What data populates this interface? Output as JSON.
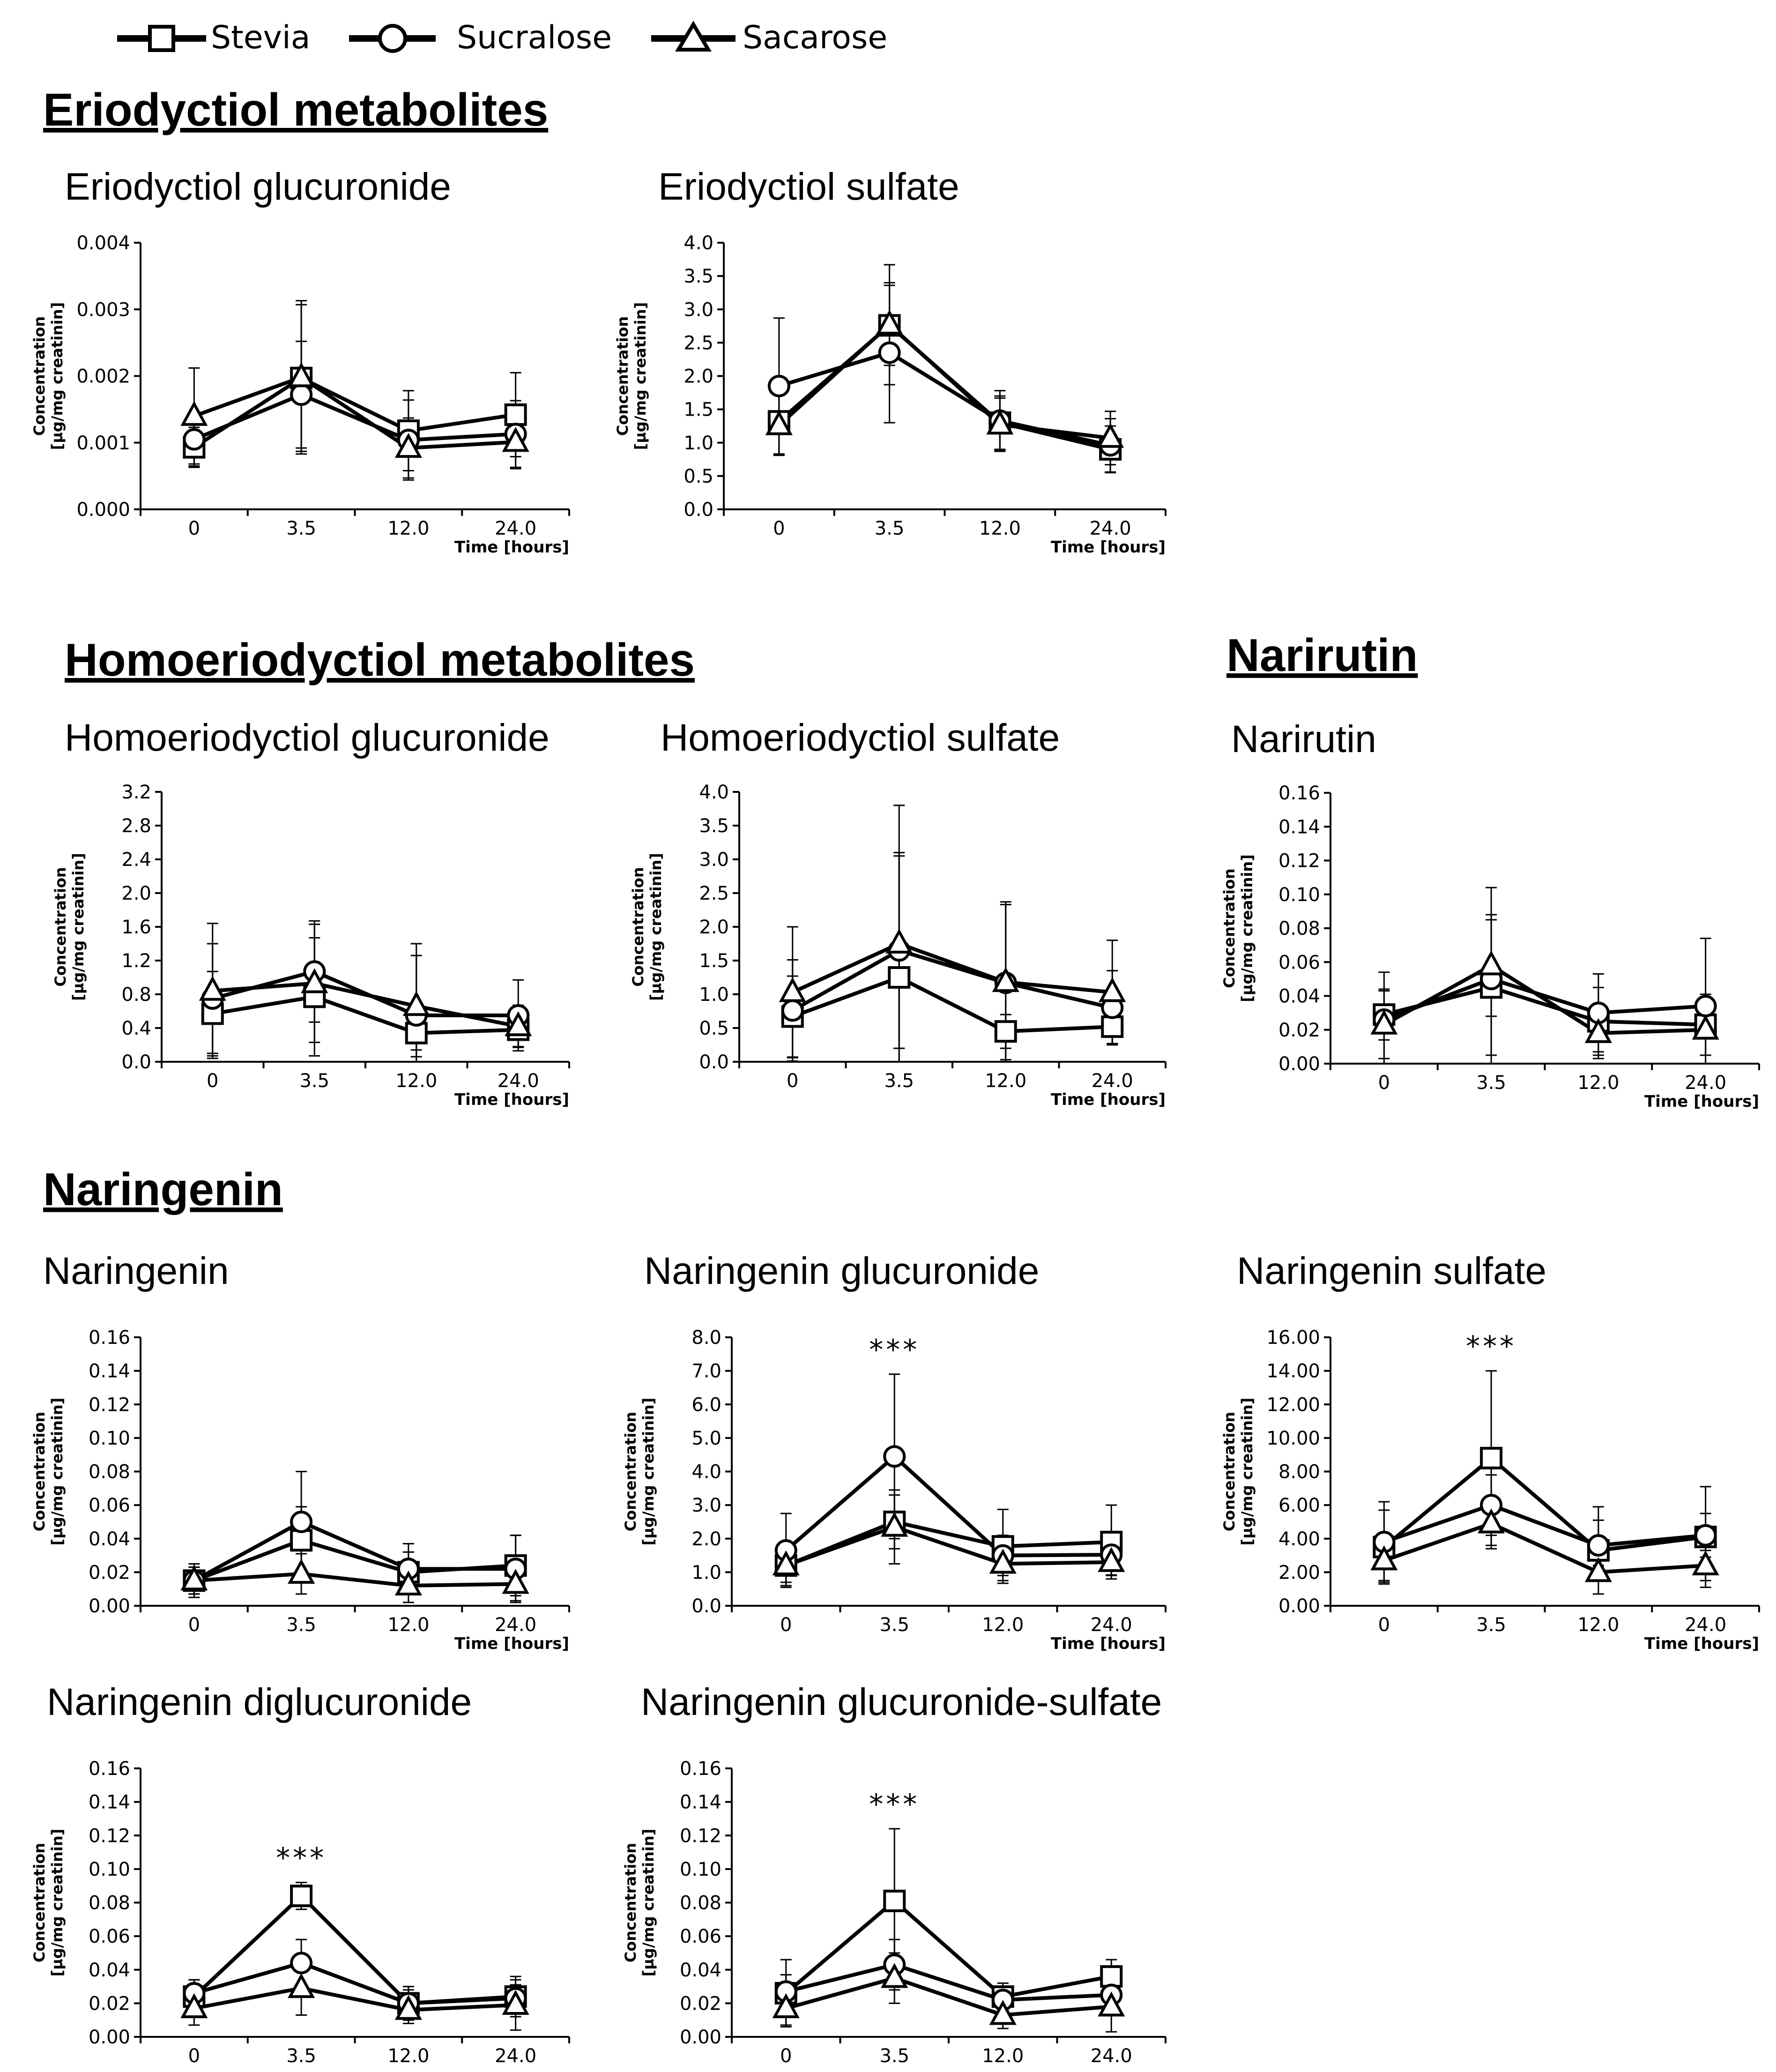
{
  "legend": [
    {
      "name": "Stevia",
      "marker": "square"
    },
    {
      "name": "Sucralose",
      "marker": "circle"
    },
    {
      "name": "Sacarose",
      "marker": "triangle"
    }
  ],
  "sections": [
    {
      "title": "Eriodyctiol metabolites"
    },
    {
      "title": "Homoeriodyctiol metabolites"
    },
    {
      "title": "Narirutin"
    },
    {
      "title": "Naringenin"
    }
  ],
  "axis": {
    "ylabel_line1": "Concentration",
    "ylabel_line2": "[µg/mg creatinin]",
    "xlabel": "Time [hours]"
  },
  "chart_data": [
    {
      "type": "line",
      "title": "Eriodyctiol glucuronide",
      "categories": [
        "0",
        "3.5",
        "12.0",
        "24.0"
      ],
      "ylim": [
        0,
        0.004
      ],
      "yticks": [
        "0.000",
        "0.001",
        "0.002",
        "0.003",
        "0.004"
      ],
      "show_xlabel": true,
      "significance": [],
      "series": [
        {
          "name": "Stevia",
          "values": [
            0.00093,
            0.00197,
            0.00118,
            0.00142
          ],
          "errors": [
            0.0003,
            0.0011,
            0.0006,
            0.00063
          ]
        },
        {
          "name": "Sucralose",
          "values": [
            0.00105,
            0.00172,
            0.00104,
            0.00113
          ],
          "errors": [
            0.0004,
            0.0008,
            0.0006,
            0.0005
          ]
        },
        {
          "name": "Sacarose",
          "values": [
            0.0014,
            0.00198,
            0.00092,
            0.00101
          ],
          "errors": [
            0.00072,
            0.00115,
            0.00045,
            0.0004
          ]
        }
      ]
    },
    {
      "type": "line",
      "title": "Eriodyctiol sulfate",
      "categories": [
        "0",
        "3.5",
        "12.0",
        "24.0"
      ],
      "ylim": [
        0,
        4.0
      ],
      "yticks": [
        "0.0",
        "0.5",
        "1.0",
        "1.5",
        "2.0",
        "2.5",
        "3.0",
        "3.5",
        "4.0"
      ],
      "show_xlabel": true,
      "significance": [],
      "series": [
        {
          "name": "Stevia",
          "values": [
            1.32,
            2.76,
            1.3,
            0.9
          ],
          "errors": [
            0.5,
            0.6,
            0.4,
            0.35
          ]
        },
        {
          "name": "Sucralose",
          "values": [
            1.85,
            2.35,
            1.33,
            0.96
          ],
          "errors": [
            1.02,
            1.05,
            0.45,
            0.4
          ]
        },
        {
          "name": "Sacarose",
          "values": [
            1.26,
            2.77,
            1.27,
            1.07
          ],
          "errors": [
            0.45,
            0.9,
            0.4,
            0.4
          ]
        }
      ]
    },
    {
      "type": "line",
      "title": "Homoeriodyctiol glucuronide",
      "categories": [
        "0",
        "3.5",
        "12.0",
        "24.0"
      ],
      "ylim": [
        0,
        3.2
      ],
      "yticks": [
        "0.0",
        "0.4",
        "0.8",
        "1.2",
        "1.6",
        "2.0",
        "2.4",
        "2.8",
        "3.2"
      ],
      "show_xlabel": true,
      "significance": [],
      "series": [
        {
          "name": "Stevia",
          "values": [
            0.57,
            0.77,
            0.34,
            0.38
          ],
          "errors": [
            0.5,
            0.7,
            0.2,
            0.2
          ]
        },
        {
          "name": "Sucralose",
          "values": [
            0.75,
            1.07,
            0.55,
            0.55
          ],
          "errors": [
            0.65,
            0.6,
            0.85,
            0.42
          ]
        },
        {
          "name": "Sacarose",
          "values": [
            0.84,
            0.93,
            0.66,
            0.42
          ],
          "errors": [
            0.8,
            0.7,
            0.6,
            0.25
          ]
        }
      ]
    },
    {
      "type": "line",
      "title": "Homoeriodyctiol sulfate",
      "categories": [
        "0",
        "3.5",
        "12.0",
        "24.0"
      ],
      "ylim": [
        0,
        4.0
      ],
      "yticks": [
        "0.0",
        "0.5",
        "1.0",
        "1.5",
        "2.0",
        "2.5",
        "3.0",
        "3.5",
        "4.0"
      ],
      "show_xlabel": true,
      "significance": [],
      "series": [
        {
          "name": "Stevia",
          "values": [
            0.67,
            1.25,
            0.45,
            0.52
          ],
          "errors": [
            0.6,
            1.8,
            0.25,
            0.25
          ]
        },
        {
          "name": "Sucralose",
          "values": [
            0.76,
            1.65,
            1.17,
            0.8
          ],
          "errors": [
            0.75,
            1.45,
            1.2,
            0.55
          ]
        },
        {
          "name": "Sacarose",
          "values": [
            1.03,
            1.75,
            1.18,
            1.03
          ],
          "errors": [
            0.97,
            2.05,
            1.15,
            0.77
          ]
        }
      ]
    },
    {
      "type": "line",
      "title": "Narirutin",
      "categories": [
        "0",
        "3.5",
        "12.0",
        "24.0"
      ],
      "ylim": [
        0,
        0.16
      ],
      "yticks": [
        "0.00",
        "0.02",
        "0.04",
        "0.06",
        "0.08",
        "0.10",
        "0.12",
        "0.14",
        "0.16"
      ],
      "show_xlabel": true,
      "significance": [],
      "series": [
        {
          "name": "Stevia",
          "values": [
            0.029,
            0.045,
            0.025,
            0.023
          ],
          "errors": [
            0.015,
            0.04,
            0.02,
            0.018
          ]
        },
        {
          "name": "Sucralose",
          "values": [
            0.026,
            0.05,
            0.03,
            0.034
          ],
          "errors": [
            0.028,
            0.054,
            0.023,
            0.04
          ]
        },
        {
          "name": "Sacarose",
          "values": [
            0.023,
            0.058,
            0.018,
            0.02
          ],
          "errors": [
            0.02,
            0.03,
            0.015,
            0.015
          ]
        }
      ]
    },
    {
      "type": "line",
      "title": "Naringenin",
      "categories": [
        "0",
        "3.5",
        "12.0",
        "24.0"
      ],
      "ylim": [
        0,
        0.16
      ],
      "yticks": [
        "0.00",
        "0.02",
        "0.04",
        "0.06",
        "0.08",
        "0.10",
        "0.12",
        "0.14",
        "0.16"
      ],
      "show_xlabel": true,
      "significance": [],
      "series": [
        {
          "name": "Stevia",
          "values": [
            0.015,
            0.039,
            0.02,
            0.024
          ],
          "errors": [
            0.008,
            0.02,
            0.012,
            0.018
          ]
        },
        {
          "name": "Sucralose",
          "values": [
            0.015,
            0.05,
            0.022,
            0.022
          ],
          "errors": [
            0.01,
            0.03,
            0.015,
            0.02
          ]
        },
        {
          "name": "Sacarose",
          "values": [
            0.015,
            0.019,
            0.012,
            0.013
          ],
          "errors": [
            0.008,
            0.012,
            0.01,
            0.01
          ]
        }
      ]
    },
    {
      "type": "line",
      "title": "Naringenin glucuronide",
      "categories": [
        "0",
        "3.5",
        "12.0",
        "24.0"
      ],
      "ylim": [
        0,
        8.0
      ],
      "yticks": [
        "0.0",
        "1.0",
        "2.0",
        "3.0",
        "4.0",
        "5.0",
        "6.0",
        "7.0",
        "8.0"
      ],
      "show_xlabel": true,
      "significance": [
        {
          "index": 1,
          "label": "***"
        }
      ],
      "series": [
        {
          "name": "Stevia",
          "values": [
            1.2,
            2.5,
            1.77,
            1.9
          ],
          "errors": [
            0.6,
            0.8,
            1.1,
            1.1
          ]
        },
        {
          "name": "Sucralose",
          "values": [
            1.65,
            4.45,
            1.5,
            1.52
          ],
          "errors": [
            1.1,
            2.45,
            0.6,
            0.6
          ]
        },
        {
          "name": "Sacarose",
          "values": [
            1.2,
            2.35,
            1.25,
            1.3
          ],
          "errors": [
            0.5,
            1.1,
            0.5,
            0.4
          ]
        }
      ]
    },
    {
      "type": "line",
      "title": "Naringenin sulfate",
      "categories": [
        "0",
        "3.5",
        "12.0",
        "24.0"
      ],
      "ylim": [
        0,
        16.0
      ],
      "yticks": [
        "0.00",
        "2.00",
        "4.00",
        "6.00",
        "8.00",
        "10.00",
        "12.00",
        "14.00",
        "16.00"
      ],
      "show_xlabel": true,
      "significance": [
        {
          "index": 1,
          "label": "***"
        }
      ],
      "series": [
        {
          "name": "Stevia",
          "values": [
            3.5,
            8.8,
            3.3,
            4.1
          ],
          "errors": [
            2.2,
            5.2,
            2.6,
            3.0
          ]
        },
        {
          "name": "Sucralose",
          "values": [
            3.8,
            6.0,
            3.6,
            4.2
          ],
          "errors": [
            2.4,
            1.8,
            1.5,
            1.3
          ]
        },
        {
          "name": "Sacarose",
          "values": [
            2.7,
            4.9,
            2.0,
            2.4
          ],
          "errors": [
            1.2,
            1.5,
            0.4,
            0.9
          ]
        }
      ]
    },
    {
      "type": "line",
      "title": "Naringenin diglucuronide",
      "categories": [
        "0",
        "3.5",
        "12.0",
        "24.0"
      ],
      "ylim": [
        0,
        0.16
      ],
      "yticks": [
        "0.00",
        "0.02",
        "0.04",
        "0.06",
        "0.08",
        "0.10",
        "0.12",
        "0.14",
        "0.16"
      ],
      "show_xlabel": false,
      "significance": [
        {
          "index": 1,
          "label": "***"
        }
      ],
      "series": [
        {
          "name": "Stevia",
          "values": [
            0.024,
            0.084,
            0.02,
            0.024
          ],
          "errors": [
            0.01,
            0.008,
            0.01,
            0.012
          ]
        },
        {
          "name": "Sucralose",
          "values": [
            0.026,
            0.044,
            0.02,
            0.023
          ],
          "errors": [
            0.008,
            0.014,
            0.008,
            0.008
          ]
        },
        {
          "name": "Sacarose",
          "values": [
            0.017,
            0.029,
            0.016,
            0.019
          ],
          "errors": [
            0.01,
            0.016,
            0.008,
            0.015
          ]
        }
      ]
    },
    {
      "type": "line",
      "title": "Naringenin glucuronide-sulfate",
      "categories": [
        "0",
        "3.5",
        "12.0",
        "24.0"
      ],
      "ylim": [
        0,
        0.16
      ],
      "yticks": [
        "0.00",
        "0.02",
        "0.04",
        "0.06",
        "0.08",
        "0.10",
        "0.12",
        "0.14",
        "0.16"
      ],
      "show_xlabel": false,
      "significance": [
        {
          "index": 1,
          "label": "***"
        }
      ],
      "series": [
        {
          "name": "Stevia",
          "values": [
            0.026,
            0.081,
            0.024,
            0.036
          ],
          "errors": [
            0.02,
            0.043,
            0.008,
            0.01
          ]
        },
        {
          "name": "Sucralose",
          "values": [
            0.027,
            0.043,
            0.022,
            0.025
          ],
          "errors": [
            0.01,
            0.015,
            0.008,
            0.01
          ]
        },
        {
          "name": "Sacarose",
          "values": [
            0.017,
            0.035,
            0.013,
            0.018
          ],
          "errors": [
            0.01,
            0.015,
            0.008,
            0.015
          ]
        }
      ]
    }
  ]
}
